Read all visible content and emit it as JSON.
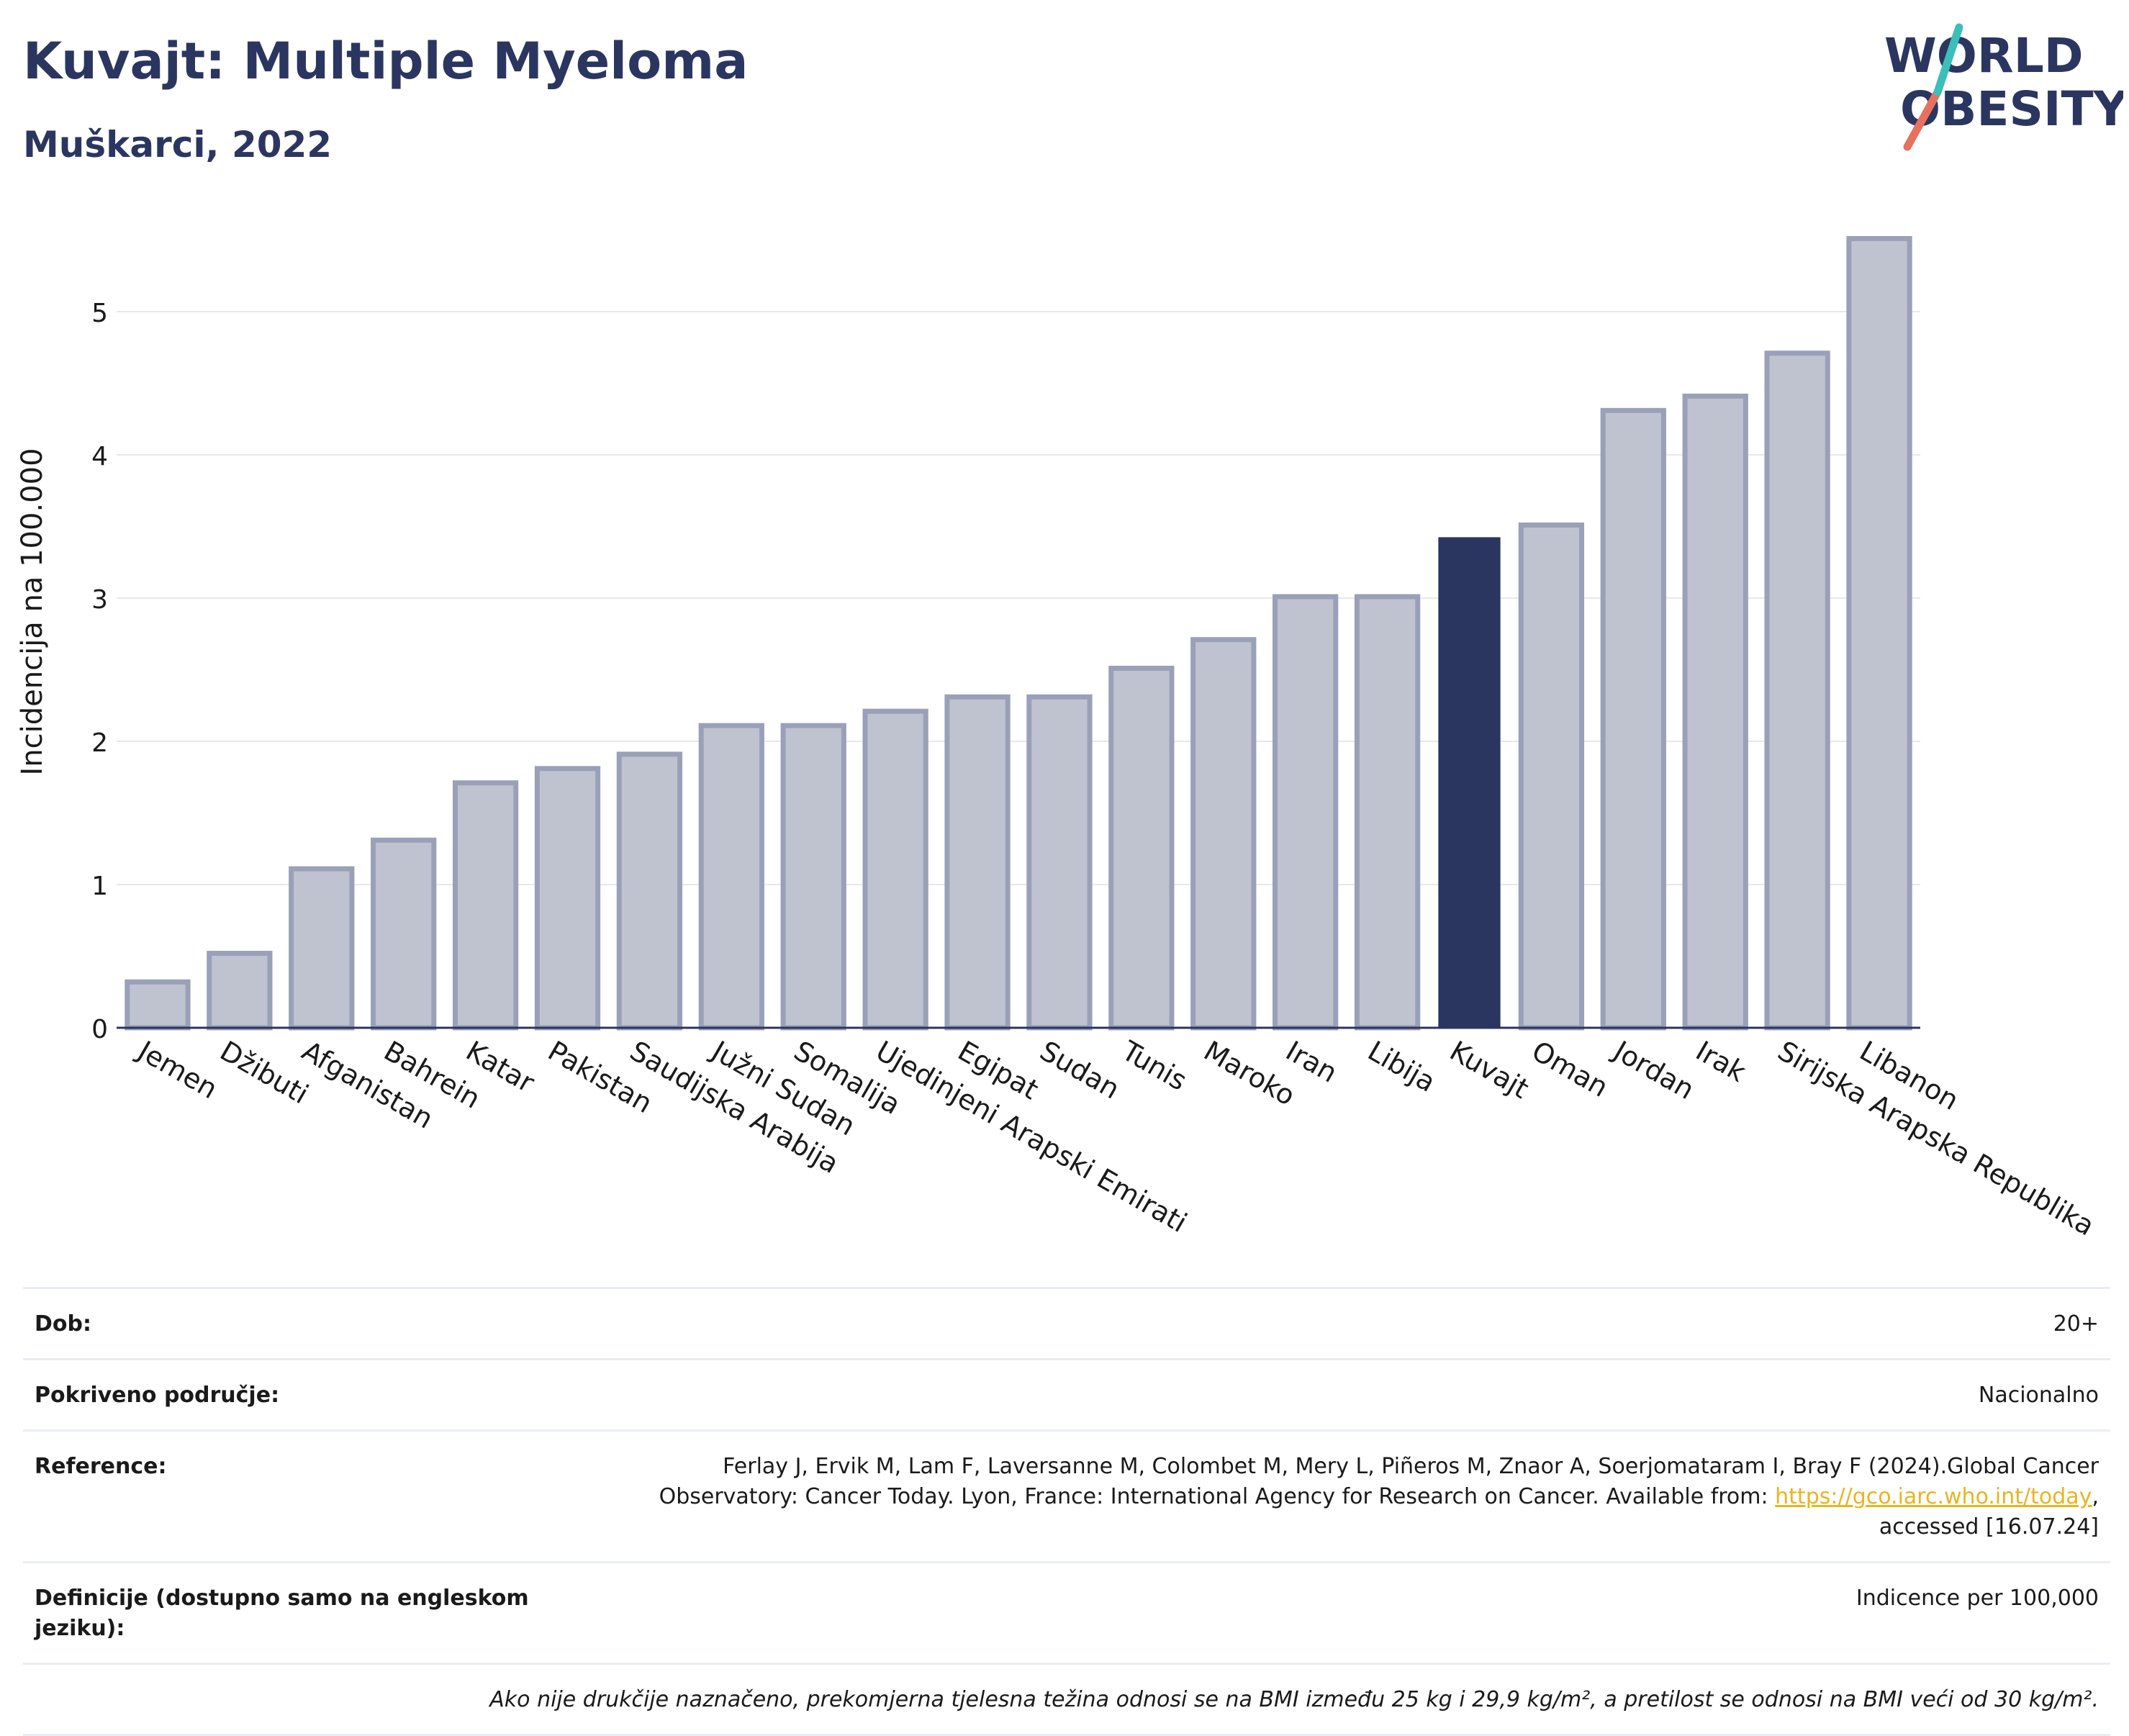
{
  "header": {
    "title": "Kuvajt: Multiple Myeloma",
    "subtitle": "Muškarci, 2022"
  },
  "logo": {
    "line1": "WORLD",
    "line2": "OBESITY",
    "accent_teal": "#3bbfb8",
    "accent_coral": "#e8715e"
  },
  "colors": {
    "bar": "#bfc3d0",
    "bar_border": "#9aa0b8",
    "highlight": "#2b3660",
    "grid": "#e6e8ee",
    "axis": "#2b3660"
  },
  "chart_data": {
    "type": "bar",
    "ylabel": "Incidencija na 100.000",
    "ylim": [
      0,
      5.5
    ],
    "yticks": [
      0,
      1,
      2,
      3,
      4,
      5
    ],
    "grid": true,
    "highlight": "Kuvajt",
    "categories": [
      "Jemen",
      "Džibuti",
      "Afganistan",
      "Bahrein",
      "Katar",
      "Pakistan",
      "Saudijska Arabija",
      "Južni Sudan",
      "Somalija",
      "Ujedinjeni Arapski Emirati",
      "Egipat",
      "Sudan",
      "Tunis",
      "Maroko",
      "Iran",
      "Libija",
      "Kuvajt",
      "Oman",
      "Jordan",
      "Irak",
      "Sirijska Arapska Republika",
      "Libanon"
    ],
    "values": [
      0.32,
      0.52,
      1.11,
      1.31,
      1.71,
      1.81,
      1.91,
      2.11,
      2.11,
      2.21,
      2.31,
      2.31,
      2.51,
      2.71,
      3.01,
      3.01,
      3.42,
      3.51,
      4.31,
      4.41,
      4.71,
      5.51
    ]
  },
  "info": {
    "age_label": "Dob:",
    "age_value": "20+",
    "coverage_label": "Pokriveno područje:",
    "coverage_value": "Nacionalno",
    "reference_label": "Reference:",
    "reference_line1": "Ferlay J, Ervik M, Lam F, Laversanne M, Colombet M, Mery L, Piñeros M, Znaor A, Soerjomataram I, Bray F (2024).Global Cancer",
    "reference_line2": "Observatory: Cancer Today. Lyon, France: International Agency for Research on Cancer. Available from: ",
    "reference_link": "https://gco.iarc.who.int/today",
    "reference_line3": "accessed [16.07.24]",
    "definitions_label": "Definicije (dostupno samo na engleskom jeziku):",
    "definitions_value": "Indicence per 100,000",
    "note": "Ako nije drukčije naznačeno, prekomjerna tjelesna težina odnosi se na BMI između 25 kg i 29,9 kg/m², a pretilost se odnosi na BMI veći od 30 kg/m²."
  }
}
